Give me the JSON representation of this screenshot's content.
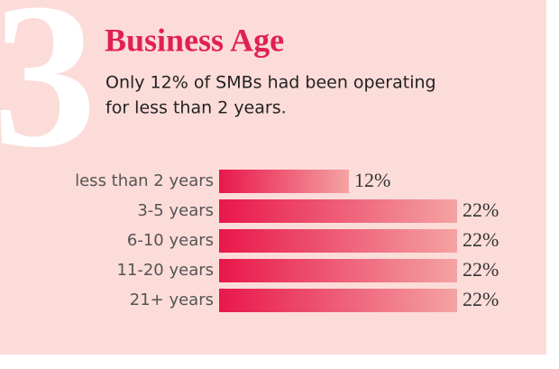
{
  "chart_data": {
    "type": "bar",
    "orientation": "horizontal",
    "annotation": "3",
    "title": "Business Age",
    "subtitle": [
      "Only 12% of SMBs had been operating",
      "for less than 2 years."
    ],
    "categories": [
      "less than 2 years",
      "3-5 years",
      "6-10 years",
      "11-20 years",
      "21+ years"
    ],
    "values": [
      12,
      22,
      22,
      22,
      22
    ],
    "value_labels": [
      "12%",
      "22%",
      "22%",
      "22%",
      "22%"
    ],
    "color": [
      "#e8174a",
      "#f4a3a3"
    ]
  }
}
